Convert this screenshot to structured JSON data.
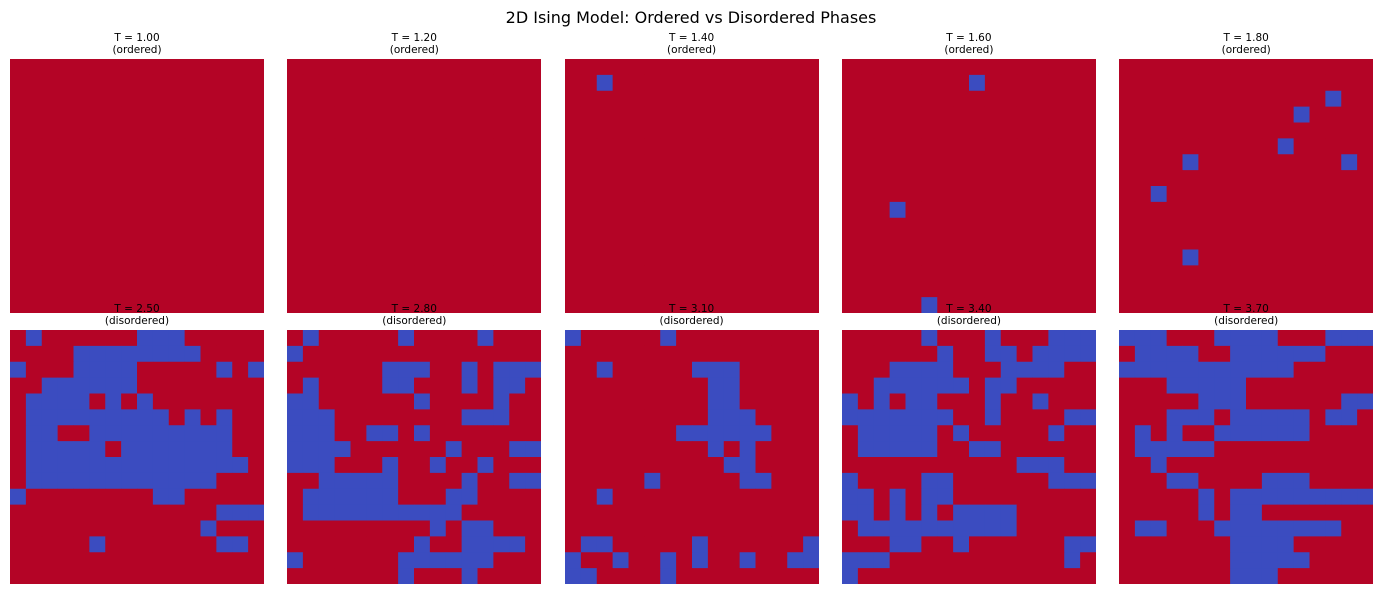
{
  "colors": {
    "up": "#b40426",
    "down": "#3b4cc0"
  },
  "chart_data": {
    "title": "2D Ising Model: Ordered vs Disordered Phases",
    "type": "heatmap",
    "legend": "none",
    "grid": false,
    "panels": [
      {
        "temperature": "T = 1.00",
        "phase": "(ordered)",
        "lattice": [
          "1111111111111111",
          "1111111111111111",
          "1111111111111111",
          "1111111111111111",
          "1111111111111111",
          "1111111111111111",
          "1111111111111111",
          "1111111111111111",
          "1111111111111111",
          "1111111111111111",
          "1111111111111111",
          "1111111111111111",
          "1111111111111111",
          "1111111111111111",
          "1111111111111111",
          "1111111111111111"
        ]
      },
      {
        "temperature": "T = 1.20",
        "phase": "(ordered)",
        "lattice": [
          "1111111111111111",
          "1111111111111111",
          "1111111111111111",
          "1111111111111111",
          "1111111111111111",
          "1111111111111111",
          "1111111111111111",
          "1111111111111111",
          "1111111111111111",
          "1111111111111111",
          "1111111111111111",
          "1111111111111111",
          "1111111111111111",
          "1111111111111111",
          "1111111111111111",
          "1111111111111111"
        ]
      },
      {
        "temperature": "T = 1.40",
        "phase": "(ordered)",
        "lattice": [
          "1111111111111111",
          "1101111111111111",
          "1111111111111111",
          "1111111111111111",
          "1111111111111111",
          "1111111111111111",
          "1111111111111111",
          "1111111111111111",
          "1111111111111111",
          "1111111111111111",
          "1111111111111111",
          "1111111111111111",
          "1111111111111111",
          "1111111111111111",
          "1111111111111111",
          "1111111111111111"
        ]
      },
      {
        "temperature": "T = 1.60",
        "phase": "(ordered)",
        "lattice": [
          "1111111111111111",
          "1111111101111111",
          "1111111111111111",
          "1111111111111111",
          "1111111111111111",
          "1111111111111111",
          "1111111111111111",
          "1111111111111111",
          "1111111111111111",
          "1110111111111111",
          "1111111111111111",
          "1111111111111111",
          "1111111111111111",
          "1111111111111111",
          "1111111111111111",
          "1111101111111111"
        ]
      },
      {
        "temperature": "T = 1.80",
        "phase": "(ordered)",
        "lattice": [
          "1111111111111111",
          "1111111111111111",
          "1111111111111011",
          "1111111111101111",
          "1111111111111111",
          "1111111111011111",
          "1111011111111101",
          "1111111111111111",
          "1101111111111111",
          "1111111111111111",
          "1111111111111111",
          "1111111111111111",
          "1111011111111111",
          "1111111111111111",
          "1111111111111111",
          "1111111111111111"
        ]
      },
      {
        "temperature": "T = 2.50",
        "phase": "(disordered)",
        "lattice": [
          "1011111100011111",
          "1111000000001111",
          "0111000011111010",
          "1100000011111111",
          "1000010101111111",
          "1000000000101011",
          "1001100000000011",
          "1000001000000011",
          "1000000000000001",
          "1000000000000111",
          "0111111110011111",
          "1111111111111000",
          "1111111111110111",
          "1111101111111001",
          "1111111111111111",
          "1111111111111111"
        ]
      },
      {
        "temperature": "T = 2.80",
        "phase": "(disordered)",
        "lattice": [
          "1011111011110111",
          "0111111111111111",
          "1111110001101000",
          "1011110011101001",
          "0011111101111011",
          "0001111111100011",
          "0001100101111111",
          "0000111111011100",
          "0001110110110111",
          "1100000111101100",
          "1000000111001111",
          "1000000000011111",
          "1111111110100111",
          "1111111101100001",
          "0111111000000111",
          "1111111011101111"
        ]
      },
      {
        "temperature": "T = 3.10",
        "phase": "(disordered)",
        "lattice": [
          "0111110111111111",
          "1111111111111111",
          "1101111100011111",
          "1111111110011111",
          "1111111110011111",
          "1111111110001111",
          "1111111000000111",
          "1111111110101111",
          "1111111111001111",
          "1111101111100111",
          "1101111111111111",
          "1111111111111111",
          "1111111111111111",
          "1001111101111110",
          "0110110101101100",
          "0011110111111111"
        ]
      },
      {
        "temperature": "T = 3.40",
        "phase": "(disordered)",
        "lattice": [
          "1111101110111000",
          "1111110110010000",
          "1110000111000011",
          "1100000010011111",
          "0101001110110111",
          "0000000110111100",
          "1000001011111011",
          "1000001100111111",
          "1111111111100011",
          "0111100111111000",
          "0010100111111111",
          "0010101000011111",
          "1000000000011111",
          "1110011011111100",
          "0001111111111101",
          "0111111111111111"
        ]
      },
      {
        "temperature": "T = 3.70",
        "phase": "(disordered)",
        "lattice": [
          "0001110000111000",
          "1000011000000111",
          "0000000000011111",
          "1110000011111111",
          "1111100011111100",
          "1110001000001001",
          "1010110000001111",
          "1000001111111111",
          "1101111111111111",
          "1110011110001111",
          "1111101000000000",
          "1111101001111111",
          "1001110000000011",
          "1111111000011111",
          "1111111000001111",
          "1111111000111111"
        ]
      }
    ]
  }
}
